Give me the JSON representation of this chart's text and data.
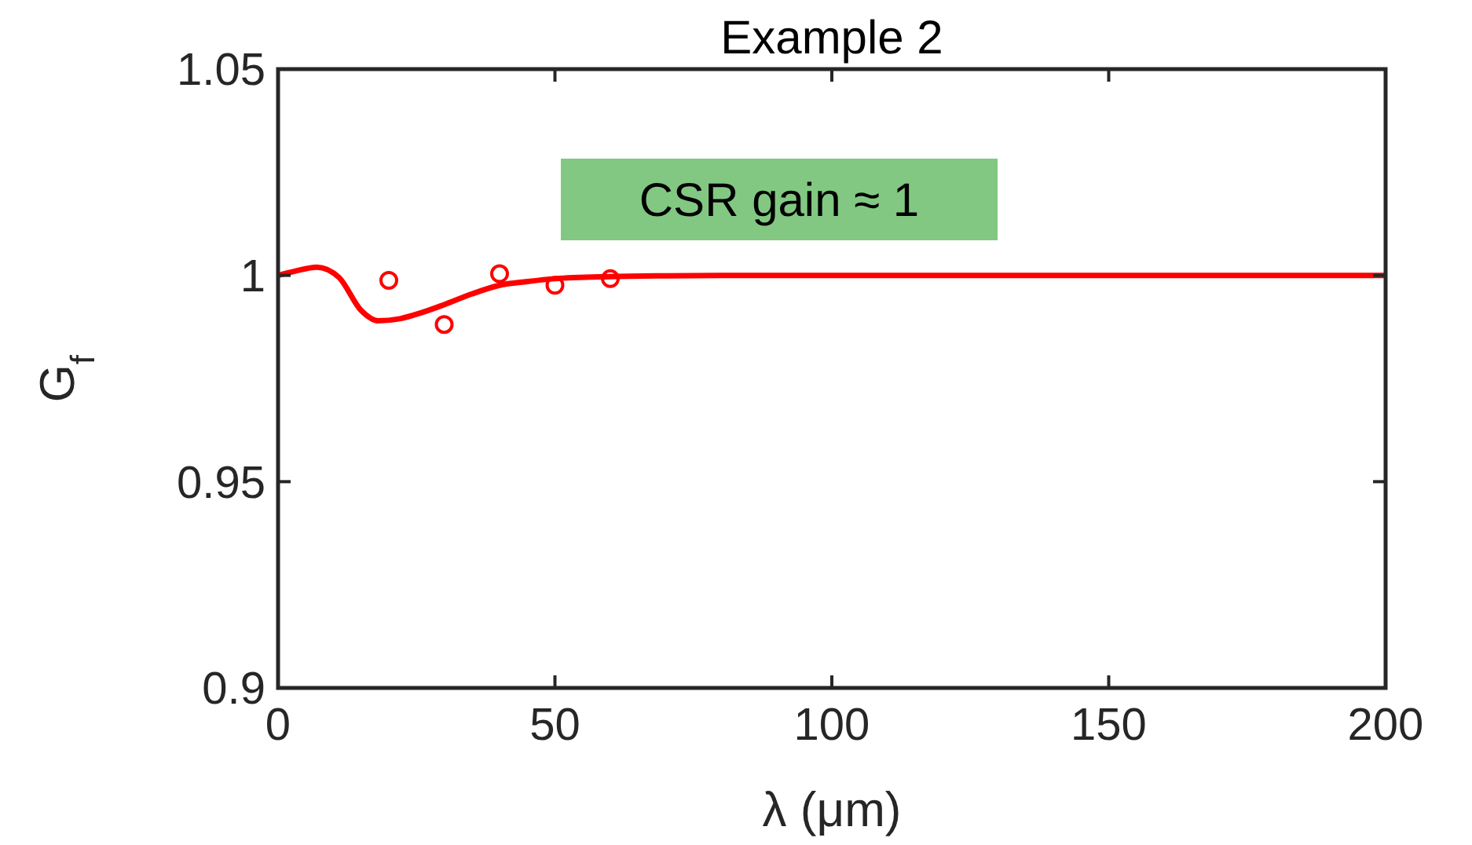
{
  "chart_data": {
    "type": "line",
    "title": "Example 2",
    "xlabel": "λ (μm)",
    "ylabel": "G$_{f}$",
    "annotations": [
      "CSR gain ≈ 1"
    ],
    "xlim": [
      0,
      200
    ],
    "ylim": [
      0.9,
      1.05
    ],
    "xticks": [
      0,
      50,
      100,
      150,
      200
    ],
    "yticks": [
      {
        "value": 0.9,
        "label": "0.9"
      },
      0.95,
      {
        "value": 1,
        "label": "1"
      },
      1.05
    ],
    "grid": false,
    "series": [
      {
        "color": "#ff0000",
        "marker": "none",
        "line_style": "solid",
        "x": [
          0,
          3,
          7,
          11,
          15,
          18,
          22,
          26,
          30,
          35,
          40,
          45,
          50,
          60,
          70,
          80,
          100,
          150,
          200
        ],
        "values": [
          1.0,
          1.001,
          1.002,
          0.9995,
          0.9915,
          0.989,
          0.9895,
          0.991,
          0.9929,
          0.9955,
          0.9976,
          0.9985,
          0.9992,
          0.9997,
          0.9999,
          1.0,
          1.0,
          1.0,
          1.0
        ]
      },
      {
        "type": "scatter",
        "color": "#ff0000",
        "marker": "circle",
        "x": [
          20,
          30,
          40,
          50,
          60
        ],
        "values": [
          0.9988,
          0.9881,
          1.0004,
          0.9976,
          0.9992
        ]
      }
    ]
  }
}
